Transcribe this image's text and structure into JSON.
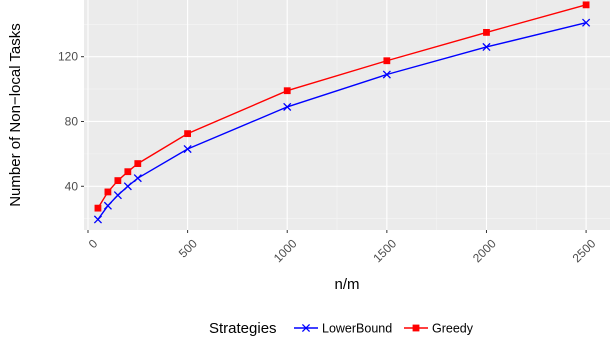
{
  "chart_data": {
    "type": "line",
    "xlabel": "n/m",
    "ylabel": "Number of Non−local Tasks",
    "xlim": [
      -20,
      2620
    ],
    "ylim": [
      13,
      155
    ],
    "x_ticks": [
      0,
      500,
      1000,
      1500,
      2000,
      2500
    ],
    "x_tick_labels": [
      "0",
      "500",
      "1000",
      "1500",
      "2000",
      "2500"
    ],
    "y_ticks": [
      40,
      80,
      120
    ],
    "y_tick_labels": [
      "40",
      "80",
      "120"
    ],
    "grid": true,
    "legend": {
      "position": "bottom",
      "title": "Strategies"
    },
    "x": [
      50,
      100,
      150,
      200,
      250,
      500,
      1000,
      1500,
      2000,
      2500
    ],
    "series": [
      {
        "name": "LowerBound",
        "color": "#0000ff",
        "marker": "x",
        "values": [
          19.5,
          28,
          34.5,
          40,
          45,
          63,
          89,
          109,
          126,
          141
        ]
      },
      {
        "name": "Greedy",
        "color": "#ff0000",
        "marker": "square",
        "values": [
          26.5,
          36.5,
          43.5,
          49,
          54,
          72.5,
          99,
          117.5,
          135,
          152
        ]
      }
    ]
  }
}
